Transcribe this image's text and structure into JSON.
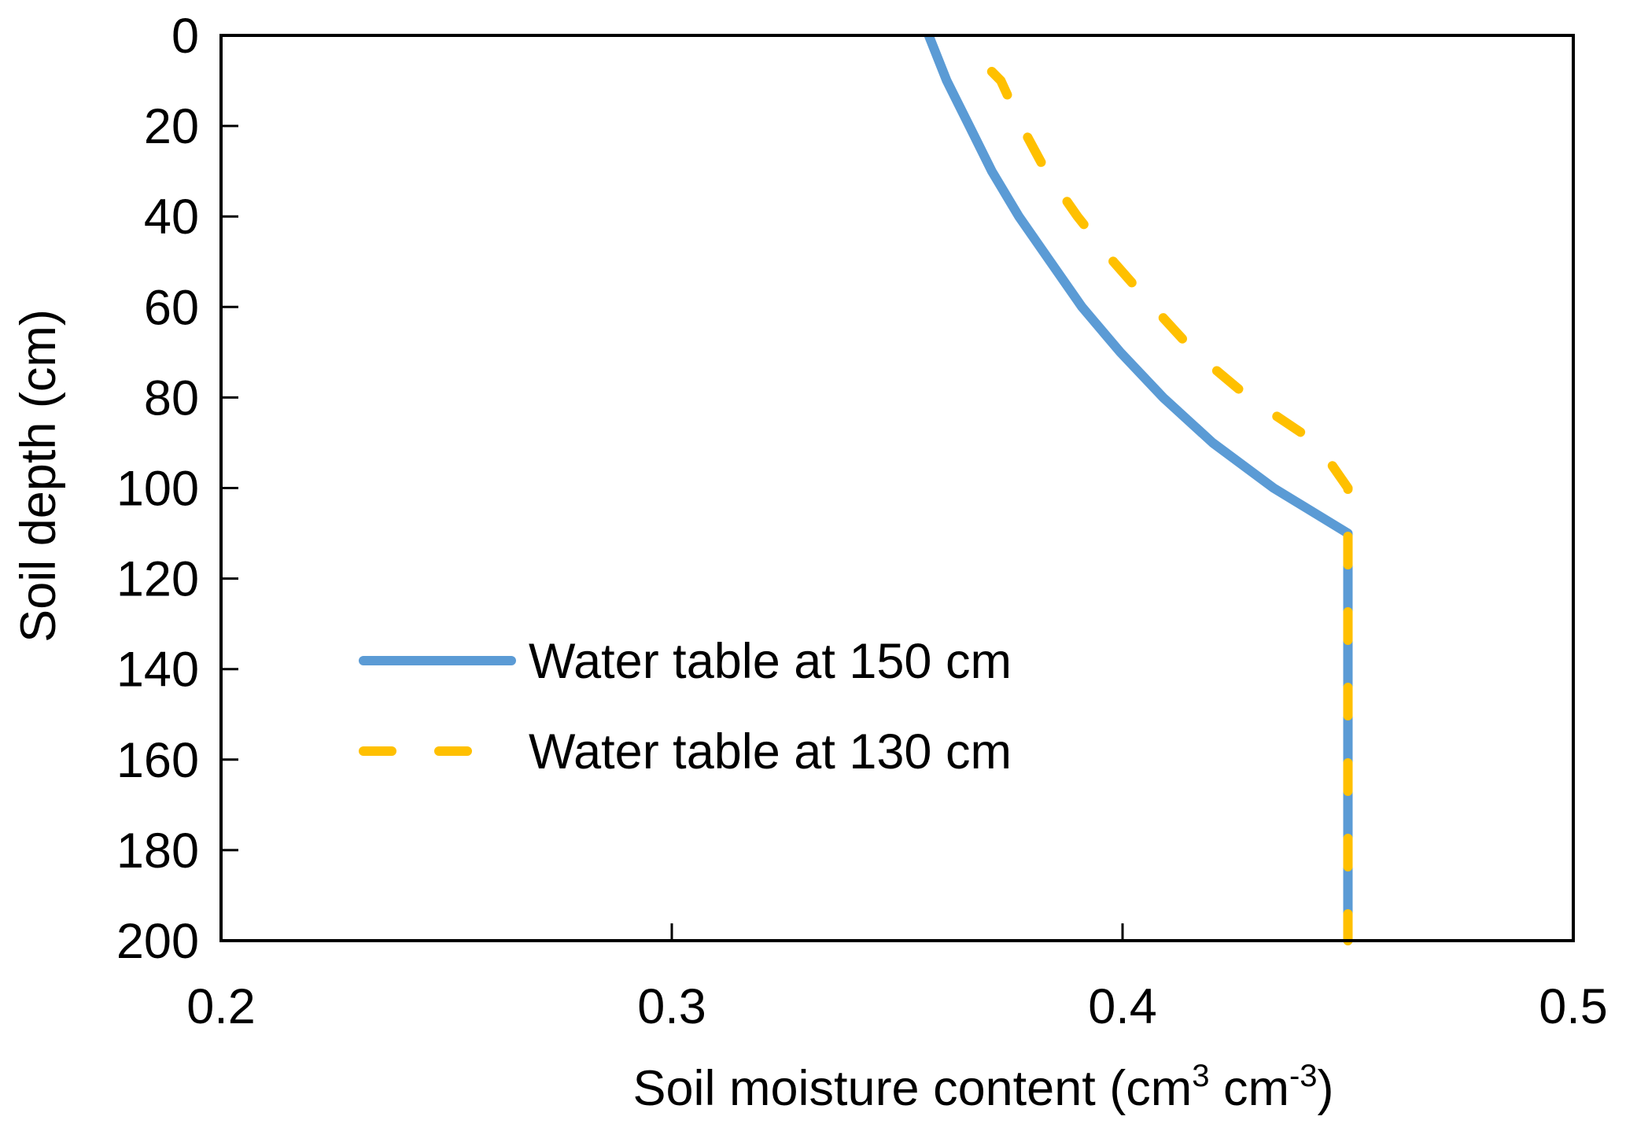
{
  "chart_data": {
    "type": "line",
    "title": "",
    "xlabel": "Soil moisture content (cm",
    "xlabel_unit_sup1": "3",
    "xlabel_mid": " cm",
    "xlabel_unit_sup2": "-3",
    "xlabel_end": ")",
    "ylabel": "Soil depth (cm)",
    "xlim": [
      0.2,
      0.5
    ],
    "ylim": [
      0,
      200
    ],
    "y_inverted": true,
    "grid": false,
    "legend_position": "center-left",
    "x_ticks": [
      "0.2",
      "0.3",
      "0.4",
      "0.5"
    ],
    "y_ticks": [
      "0",
      "20",
      "40",
      "60",
      "80",
      "100",
      "120",
      "140",
      "160",
      "180",
      "200"
    ],
    "series": [
      {
        "name": "Water table at 150 cm",
        "color": "#5B9BD5",
        "style": "solid",
        "points": [
          [
            0.357,
            0
          ],
          [
            0.361,
            10
          ],
          [
            0.366,
            20
          ],
          [
            0.371,
            30
          ],
          [
            0.377,
            40
          ],
          [
            0.384,
            50
          ],
          [
            0.391,
            60
          ],
          [
            0.3995,
            70
          ],
          [
            0.409,
            80
          ],
          [
            0.42,
            90
          ],
          [
            0.4335,
            100
          ],
          [
            0.45,
            110
          ],
          [
            0.45,
            120
          ],
          [
            0.45,
            130
          ],
          [
            0.45,
            140
          ],
          [
            0.45,
            150
          ],
          [
            0.45,
            160
          ],
          [
            0.45,
            170
          ],
          [
            0.45,
            180
          ],
          [
            0.45,
            190
          ],
          [
            0.45,
            200
          ]
        ]
      },
      {
        "name": "Water table at 130 cm",
        "color": "#FFC000",
        "style": "dashed",
        "points": [
          [
            0.371,
            8
          ],
          [
            0.373,
            10
          ],
          [
            0.3776,
            20
          ],
          [
            0.383,
            30
          ],
          [
            0.39,
            40
          ],
          [
            0.398,
            50
          ],
          [
            0.4068,
            60
          ],
          [
            0.416,
            70
          ],
          [
            0.428,
            80
          ],
          [
            0.443,
            90
          ],
          [
            0.45,
            100
          ],
          [
            0.45,
            110
          ],
          [
            0.45,
            120
          ],
          [
            0.45,
            130
          ],
          [
            0.45,
            140
          ],
          [
            0.45,
            150
          ],
          [
            0.45,
            160
          ],
          [
            0.45,
            170
          ],
          [
            0.45,
            180
          ],
          [
            0.45,
            190
          ],
          [
            0.45,
            200
          ]
        ]
      }
    ]
  }
}
